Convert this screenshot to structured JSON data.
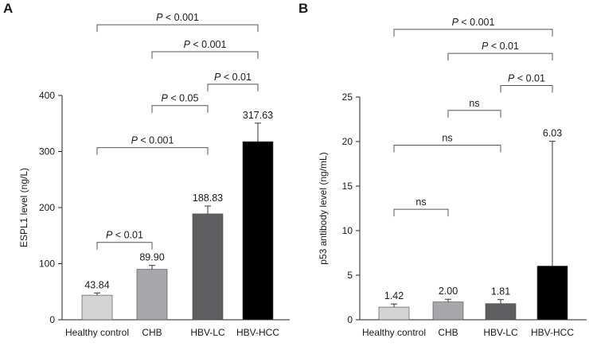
{
  "chart_data": [
    {
      "panel": "A",
      "type": "bar",
      "ylabel": "ESPL1 level (ng/L)",
      "ylim": [
        0,
        400
      ],
      "yticks": [
        0,
        100,
        200,
        300,
        400
      ],
      "categories": [
        "Healthy control",
        "CHB",
        "HBV-LC",
        "HBV-HCC"
      ],
      "values": [
        43.84,
        89.9,
        188.83,
        317.63
      ],
      "value_labels": [
        "43.84",
        "89.90",
        "188.83",
        "317.63"
      ],
      "errors": [
        4,
        7,
        14,
        33
      ],
      "colors": [
        "#d4d4d4",
        "#a7a7ab",
        "#5f5f61",
        "#000000"
      ],
      "comparisons": [
        {
          "from": 0,
          "to": 1,
          "label_prefix": "P",
          "label": " < 0.01",
          "y": 138
        },
        {
          "from": 0,
          "to": 2,
          "label_prefix": "P",
          "label": " < 0.001",
          "y": 307
        },
        {
          "from": 1,
          "to": 2,
          "label_prefix": "P",
          "label": " < 0.05",
          "y": 382
        },
        {
          "from": 2,
          "to": 3,
          "label_prefix": "P",
          "label": " < 0.01",
          "y": 420
        },
        {
          "from": 1,
          "to": 3,
          "label_prefix": "P",
          "label": " < 0.001",
          "y": 478
        },
        {
          "from": 0,
          "to": 3,
          "label_prefix": "P",
          "label": " < 0.001",
          "y": 526
        }
      ]
    },
    {
      "panel": "B",
      "type": "bar",
      "ylabel": "p53 antibody level (ng/mL)",
      "ylim": [
        0,
        25
      ],
      "yticks": [
        0,
        5,
        10,
        15,
        20,
        25
      ],
      "categories": [
        "Healthy control",
        "CHB",
        "HBV-LC",
        "HBV-HCC"
      ],
      "values": [
        1.42,
        2.0,
        1.81,
        6.03
      ],
      "value_labels": [
        "1.42",
        "2.00",
        "1.81",
        "6.03"
      ],
      "errors": [
        0.35,
        0.3,
        0.45,
        14.0
      ],
      "colors": [
        "#d4d4d4",
        "#a7a7ab",
        "#5f5f61",
        "#000000"
      ],
      "comparisons": [
        {
          "from": 0,
          "to": 1,
          "label_prefix": "",
          "label": "ns",
          "y": 12.4
        },
        {
          "from": 0,
          "to": 2,
          "label_prefix": "",
          "label": "ns",
          "y": 19.6
        },
        {
          "from": 1,
          "to": 2,
          "label_prefix": "",
          "label": "ns",
          "y": 23.5
        },
        {
          "from": 2,
          "to": 3,
          "label_prefix": "P",
          "label": " < 0.01",
          "y": 26.3
        },
        {
          "from": 1,
          "to": 3,
          "label_prefix": "P",
          "label": " < 0.01",
          "y": 29.9
        },
        {
          "from": 0,
          "to": 3,
          "label_prefix": "P",
          "label": " < 0.001",
          "y": 32.6
        }
      ]
    }
  ]
}
